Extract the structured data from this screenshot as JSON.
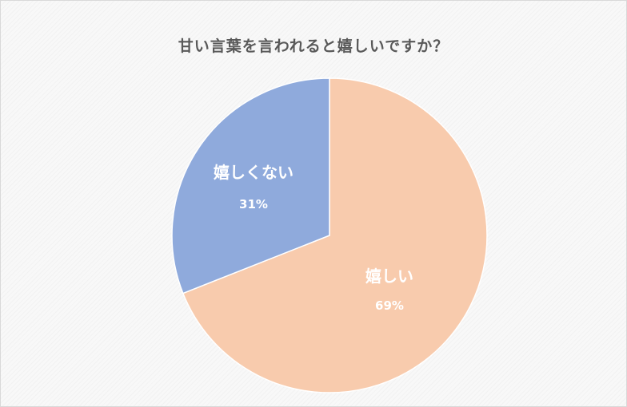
{
  "chart_data": {
    "type": "pie",
    "title": "甘い言葉を言われると嬉しいですか？",
    "slices": [
      {
        "label": "嬉しい",
        "value": 69,
        "value_label": "69%",
        "color": "#f8cbad"
      },
      {
        "label": "嬉しくない",
        "value": 31,
        "value_label": "31%",
        "color": "#8faadc"
      }
    ],
    "start": "12 o'clock",
    "direction": "clockwise",
    "legend": "none",
    "data_labels": "inside"
  }
}
